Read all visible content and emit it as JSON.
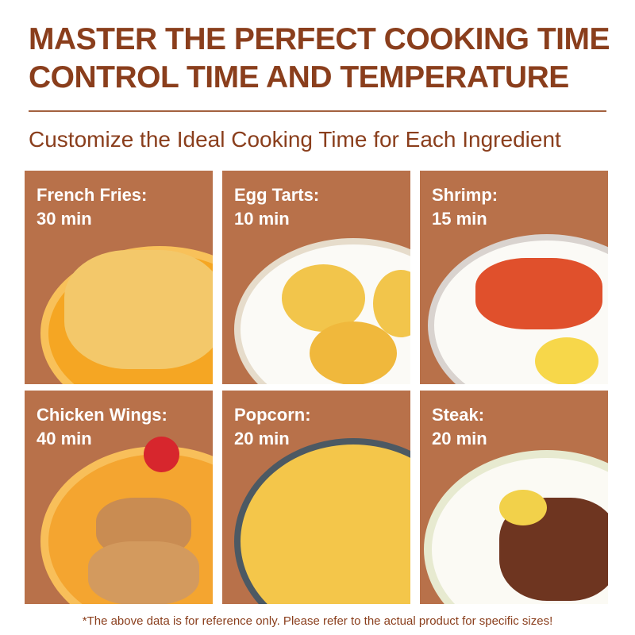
{
  "header": {
    "title_line1": "MASTER THE PERFECT COOKING TIME",
    "title_line2": "CONTROL TIME AND TEMPERATURE",
    "subtitle": "Customize the Ideal Cooking Time for Each Ingredient"
  },
  "colors": {
    "title": "#8a3e1c",
    "tile": "#b8714a"
  },
  "items": [
    {
      "name": "French Fries:",
      "time": "30 min"
    },
    {
      "name": "Egg Tarts:",
      "time": "10 min"
    },
    {
      "name": "Shrimp:",
      "time": "15 min"
    },
    {
      "name": "Chicken Wings:",
      "time": "40 min"
    },
    {
      "name": "Popcorn:",
      "time": "20 min"
    },
    {
      "name": "Steak:",
      "time": "20 min"
    }
  ],
  "footer": {
    "note": "*The above data is for reference only. Please refer to the actual product for specific sizes!"
  }
}
